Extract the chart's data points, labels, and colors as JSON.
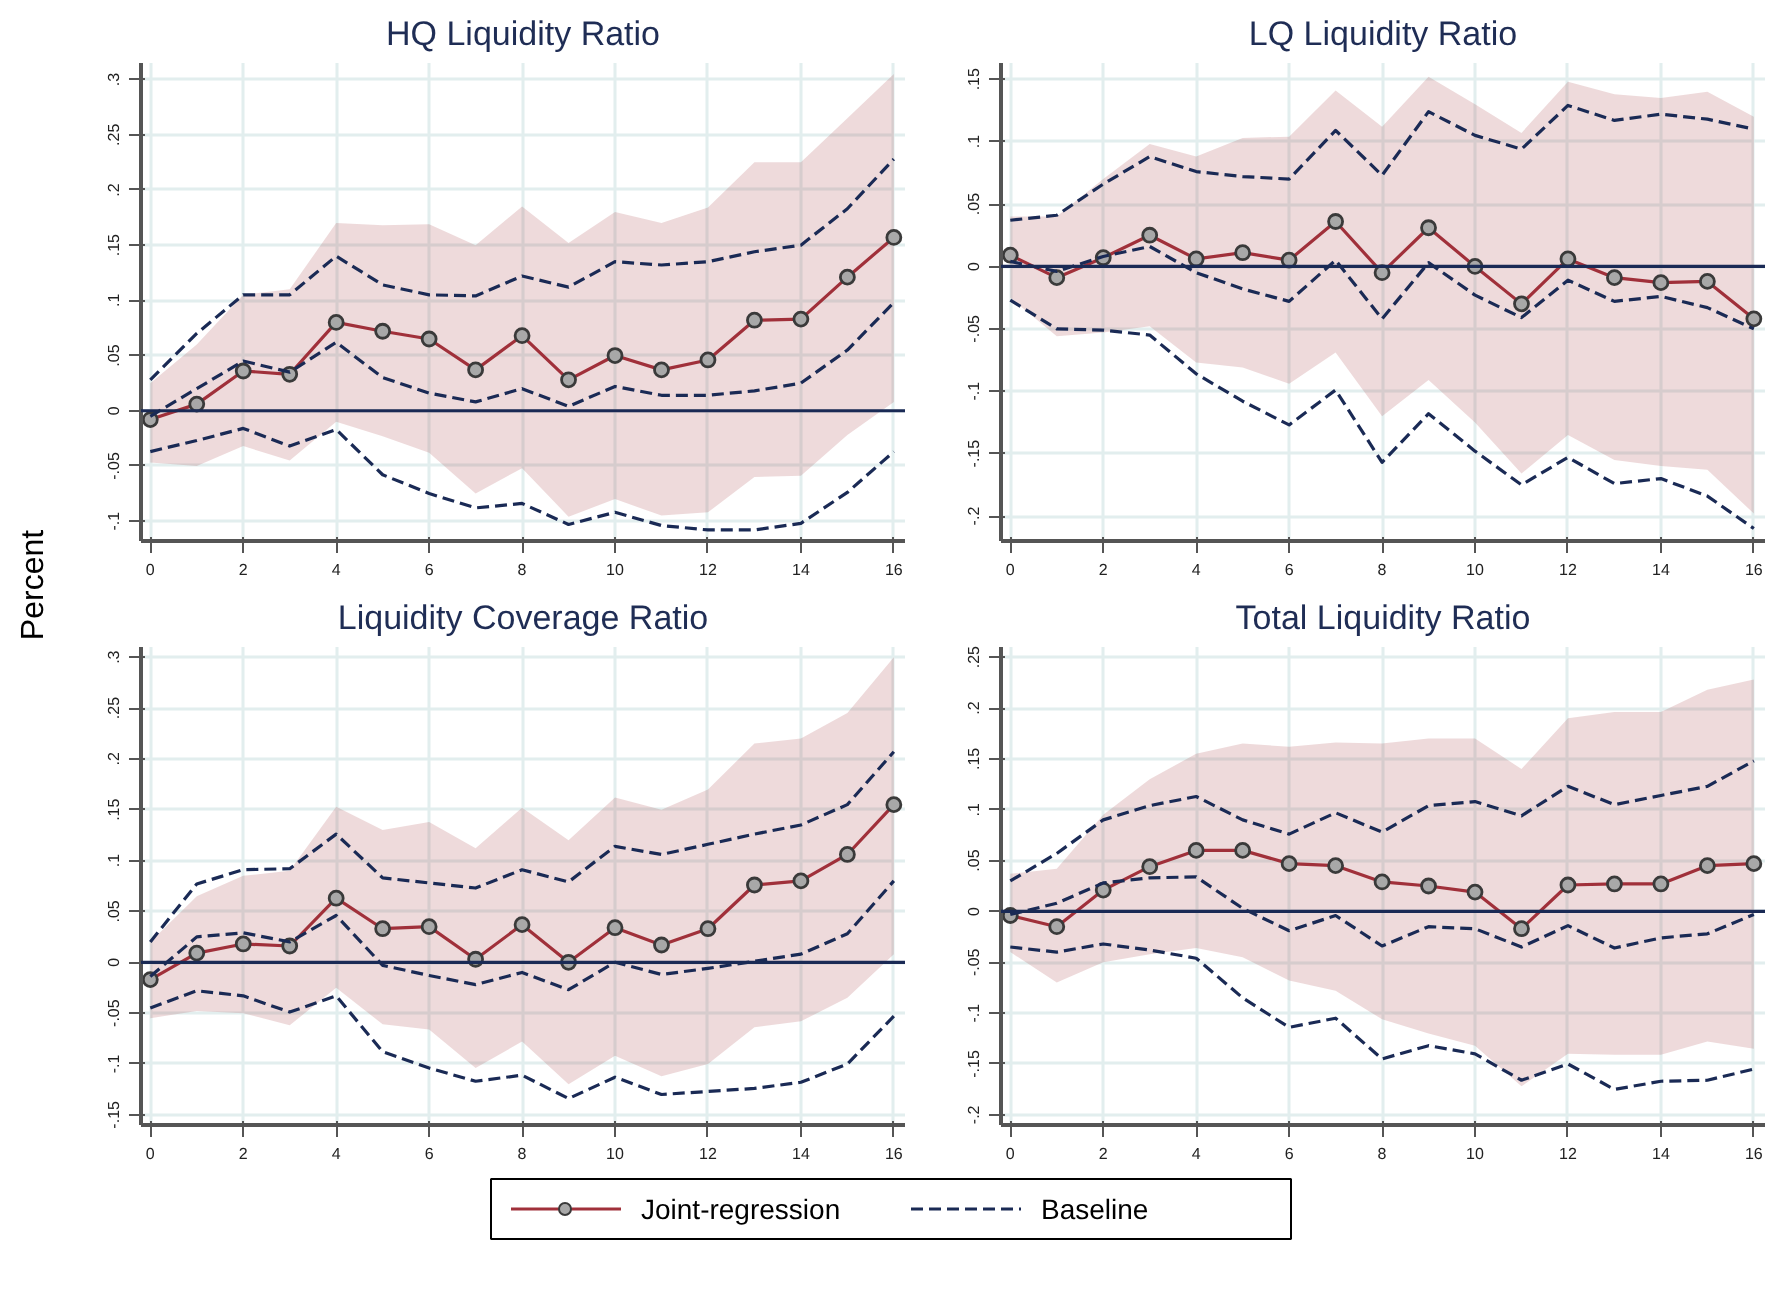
{
  "chart_data": [
    {
      "type": "line",
      "title": "HQ Liquidity Ratio",
      "ylabel": "Percent",
      "legend": "bottom",
      "grid": true,
      "x": [
        0,
        1,
        2,
        3,
        4,
        5,
        6,
        7,
        8,
        9,
        10,
        11,
        12,
        13,
        14,
        15,
        16
      ],
      "xlim": [
        -0.2,
        16.24
      ],
      "xticks": [
        0,
        2,
        4,
        6,
        8,
        10,
        12,
        14,
        16
      ],
      "ylim": [
        -0.118,
        0.315
      ],
      "yticks": [
        {
          "value": -0.1,
          "label": "-.1"
        },
        {
          "value": -0.05,
          "label": "-.05"
        },
        0,
        {
          "value": 0.05,
          "label": ".05"
        },
        {
          "value": 0.1,
          "label": ".1"
        },
        {
          "value": 0.15,
          "label": ".15"
        },
        {
          "value": 0.2,
          "label": ".2"
        },
        {
          "value": 0.25,
          "label": ".25"
        },
        {
          "value": 0.3,
          "label": ".3"
        }
      ],
      "ref_lines": [
        {
          "axis": "y",
          "value": 0,
          "color": "#1a2a55"
        }
      ],
      "series": [
        {
          "name": "Joint-regression",
          "color": "#a0303a",
          "marker": "circle",
          "line_style": "solid",
          "values": [
            -0.008,
            0.006,
            0.036,
            0.033,
            0.08,
            0.072,
            0.065,
            0.037,
            0.068,
            0.028,
            0.05,
            0.037,
            0.046,
            0.082,
            0.083,
            0.121,
            0.157
          ],
          "lower": [
            -0.047,
            -0.05,
            -0.032,
            -0.045,
            -0.01,
            -0.023,
            -0.038,
            -0.075,
            -0.052,
            -0.096,
            -0.08,
            -0.095,
            -0.092,
            -0.06,
            -0.059,
            -0.022,
            0.008
          ],
          "upper": [
            0.025,
            0.06,
            0.105,
            0.11,
            0.17,
            0.168,
            0.169,
            0.15,
            0.185,
            0.152,
            0.18,
            0.17,
            0.184,
            0.225,
            0.225,
            0.265,
            0.305
          ]
        },
        {
          "name": "Baseline",
          "color": "#1a2a55",
          "marker": "none",
          "line_style": "dashed",
          "values": [
            -0.005,
            0.02,
            0.045,
            0.035,
            0.062,
            0.03,
            0.016,
            0.008,
            0.02,
            0.004,
            0.022,
            0.014,
            0.014,
            0.018,
            0.025,
            0.055,
            0.098
          ]
        },
        {
          "color": "#1a2a55",
          "marker": "none",
          "line_style": "dashed",
          "values": [
            0.028,
            0.07,
            0.105,
            0.105,
            0.14,
            0.114,
            0.105,
            0.104,
            0.122,
            0.112,
            0.135,
            0.132,
            0.135,
            0.144,
            0.15,
            0.183,
            0.228
          ]
        },
        {
          "color": "#1a2a55",
          "marker": "none",
          "line_style": "dashed",
          "values": [
            -0.037,
            -0.027,
            -0.016,
            -0.032,
            -0.017,
            -0.058,
            -0.075,
            -0.088,
            -0.084,
            -0.103,
            -0.092,
            -0.104,
            -0.108,
            -0.108,
            -0.102,
            -0.074,
            -0.037
          ]
        }
      ]
    },
    {
      "type": "line",
      "title": "LQ Liquidity Ratio",
      "grid": true,
      "x": [
        0,
        1,
        2,
        3,
        4,
        5,
        6,
        7,
        8,
        9,
        10,
        11,
        12,
        13,
        14,
        15,
        16
      ],
      "xlim": [
        -0.2,
        16.24
      ],
      "xticks": [
        0,
        2,
        4,
        6,
        8,
        10,
        12,
        14,
        16
      ],
      "ylim": [
        -0.22,
        0.163
      ],
      "yticks": [
        {
          "value": -0.2,
          "label": "-.2"
        },
        {
          "value": -0.15,
          "label": "-.15"
        },
        {
          "value": -0.1,
          "label": "-.1"
        },
        {
          "value": -0.05,
          "label": "-.05"
        },
        0,
        {
          "value": 0.05,
          "label": ".05"
        },
        {
          "value": 0.1,
          "label": ".1"
        },
        {
          "value": 0.15,
          "label": ".15"
        }
      ],
      "ref_lines": [
        {
          "axis": "y",
          "value": 0,
          "color": "#1a2a55"
        }
      ],
      "series": [
        {
          "color": "#a0303a",
          "marker": "circle",
          "line_style": "solid",
          "values": [
            0.009,
            -0.009,
            0.007,
            0.025,
            0.006,
            0.011,
            0.005,
            0.036,
            -0.005,
            0.031,
            0.0,
            -0.03,
            0.006,
            -0.009,
            -0.013,
            -0.012,
            -0.042
          ],
          "lower": [
            -0.025,
            -0.056,
            -0.053,
            -0.048,
            -0.077,
            -0.081,
            -0.094,
            -0.069,
            -0.12,
            -0.091,
            -0.125,
            -0.166,
            -0.135,
            -0.155,
            -0.16,
            -0.163,
            -0.198
          ],
          "upper": [
            0.04,
            0.04,
            0.07,
            0.098,
            0.088,
            0.103,
            0.104,
            0.141,
            0.112,
            0.152,
            0.13,
            0.107,
            0.148,
            0.138,
            0.135,
            0.14,
            0.12
          ]
        },
        {
          "color": "#1a2a55",
          "marker": "none",
          "line_style": "dashed",
          "values": [
            0.004,
            -0.004,
            0.008,
            0.016,
            -0.005,
            -0.018,
            -0.028,
            0.005,
            -0.042,
            0.003,
            -0.023,
            -0.041,
            -0.011,
            -0.028,
            -0.024,
            -0.033,
            -0.05
          ]
        },
        {
          "color": "#1a2a55",
          "marker": "none",
          "line_style": "dashed",
          "values": [
            0.037,
            0.041,
            0.066,
            0.088,
            0.076,
            0.072,
            0.07,
            0.109,
            0.073,
            0.124,
            0.105,
            0.094,
            0.129,
            0.117,
            0.122,
            0.118,
            0.11
          ]
        },
        {
          "color": "#1a2a55",
          "marker": "none",
          "line_style": "dashed",
          "values": [
            -0.027,
            -0.05,
            -0.051,
            -0.055,
            -0.086,
            -0.108,
            -0.127,
            -0.099,
            -0.157,
            -0.118,
            -0.148,
            -0.175,
            -0.153,
            -0.174,
            -0.17,
            -0.184,
            -0.21
          ]
        }
      ]
    },
    {
      "type": "line",
      "title": "Liquidity Coverage Ratio",
      "grid": true,
      "x": [
        0,
        1,
        2,
        3,
        4,
        5,
        6,
        7,
        8,
        9,
        10,
        11,
        12,
        13,
        14,
        15,
        16
      ],
      "xlim": [
        -0.2,
        16.24
      ],
      "xticks": [
        0,
        2,
        4,
        6,
        8,
        10,
        12,
        14,
        16
      ],
      "ylim": [
        -0.16,
        0.31
      ],
      "yticks": [
        {
          "value": -0.15,
          "label": "-.15"
        },
        {
          "value": -0.1,
          "label": "-.1"
        },
        {
          "value": -0.05,
          "label": "-.05"
        },
        0,
        {
          "value": 0.05,
          "label": ".05"
        },
        {
          "value": 0.1,
          "label": ".1"
        },
        {
          "value": 0.15,
          "label": ".15"
        },
        {
          "value": 0.2,
          "label": ".2"
        },
        {
          "value": 0.25,
          "label": ".25"
        },
        {
          "value": 0.3,
          "label": ".3"
        }
      ],
      "ref_lines": [
        {
          "axis": "y",
          "value": 0,
          "color": "#1a2a55"
        }
      ],
      "series": [
        {
          "color": "#a0303a",
          "marker": "circle",
          "line_style": "solid",
          "values": [
            -0.017,
            0.009,
            0.018,
            0.016,
            0.063,
            0.033,
            0.035,
            0.003,
            0.037,
            0.0,
            0.034,
            0.017,
            0.033,
            0.076,
            0.08,
            0.106,
            0.155
          ],
          "lower": [
            -0.055,
            -0.048,
            -0.05,
            -0.062,
            -0.025,
            -0.061,
            -0.066,
            -0.104,
            -0.078,
            -0.12,
            -0.092,
            -0.112,
            -0.1,
            -0.064,
            -0.058,
            -0.035,
            0.008
          ],
          "upper": [
            0.02,
            0.065,
            0.085,
            0.09,
            0.153,
            0.13,
            0.138,
            0.112,
            0.152,
            0.12,
            0.162,
            0.15,
            0.17,
            0.215,
            0.22,
            0.245,
            0.3
          ]
        },
        {
          "color": "#1a2a55",
          "marker": "none",
          "line_style": "dashed",
          "values": [
            -0.014,
            0.025,
            0.029,
            0.02,
            0.046,
            -0.003,
            -0.013,
            -0.022,
            -0.01,
            -0.027,
            0.0,
            -0.012,
            -0.006,
            0.001,
            0.008,
            0.028,
            0.08
          ]
        },
        {
          "color": "#1a2a55",
          "marker": "none",
          "line_style": "dashed",
          "values": [
            0.02,
            0.077,
            0.091,
            0.092,
            0.126,
            0.083,
            0.078,
            0.073,
            0.091,
            0.079,
            0.114,
            0.106,
            0.116,
            0.126,
            0.135,
            0.155,
            0.207
          ]
        },
        {
          "color": "#1a2a55",
          "marker": "none",
          "line_style": "dashed",
          "values": [
            -0.045,
            -0.028,
            -0.033,
            -0.049,
            -0.033,
            -0.088,
            -0.104,
            -0.117,
            -0.111,
            -0.134,
            -0.113,
            -0.13,
            -0.127,
            -0.124,
            -0.118,
            -0.1,
            -0.053
          ]
        }
      ]
    },
    {
      "type": "line",
      "title": "Total Liquidity Ratio",
      "grid": true,
      "x": [
        0,
        1,
        2,
        3,
        4,
        5,
        6,
        7,
        8,
        9,
        10,
        11,
        12,
        13,
        14,
        15,
        16
      ],
      "xlim": [
        -0.2,
        16.24
      ],
      "xticks": [
        0,
        2,
        4,
        6,
        8,
        10,
        12,
        14,
        16
      ],
      "ylim": [
        -0.21,
        0.26
      ],
      "yticks": [
        {
          "value": -0.2,
          "label": "-.2"
        },
        {
          "value": -0.15,
          "label": "-.15"
        },
        {
          "value": -0.1,
          "label": "-.1"
        },
        {
          "value": -0.05,
          "label": "-.05"
        },
        0,
        {
          "value": 0.05,
          "label": ".05"
        },
        {
          "value": 0.1,
          "label": ".1"
        },
        {
          "value": 0.15,
          "label": ".15"
        },
        {
          "value": 0.2,
          "label": ".2"
        },
        {
          "value": 0.25,
          "label": ".25"
        }
      ],
      "ref_lines": [
        {
          "axis": "y",
          "value": 0,
          "color": "#1a2a55"
        }
      ],
      "series": [
        {
          "color": "#a0303a",
          "marker": "circle",
          "line_style": "solid",
          "values": [
            -0.004,
            -0.015,
            0.021,
            0.044,
            0.06,
            0.06,
            0.047,
            0.045,
            0.029,
            0.025,
            0.019,
            -0.017,
            0.026,
            0.027,
            0.027,
            0.045,
            0.047
          ],
          "lower": [
            -0.04,
            -0.07,
            -0.05,
            -0.042,
            -0.036,
            -0.045,
            -0.068,
            -0.078,
            -0.106,
            -0.12,
            -0.132,
            -0.172,
            -0.14,
            -0.141,
            -0.141,
            -0.128,
            -0.135
          ],
          "upper": [
            0.037,
            0.042,
            0.095,
            0.13,
            0.155,
            0.165,
            0.162,
            0.166,
            0.165,
            0.17,
            0.17,
            0.14,
            0.19,
            0.196,
            0.196,
            0.218,
            0.228
          ]
        },
        {
          "color": "#1a2a55",
          "marker": "none",
          "line_style": "dashed",
          "values": [
            -0.003,
            0.008,
            0.028,
            0.033,
            0.034,
            0.003,
            -0.019,
            -0.004,
            -0.034,
            -0.015,
            -0.017,
            -0.035,
            -0.014,
            -0.036,
            -0.026,
            -0.022,
            -0.003
          ]
        },
        {
          "color": "#1a2a55",
          "marker": "none",
          "line_style": "dashed",
          "values": [
            0.03,
            0.057,
            0.09,
            0.104,
            0.113,
            0.09,
            0.076,
            0.097,
            0.078,
            0.104,
            0.108,
            0.094,
            0.123,
            0.105,
            0.114,
            0.123,
            0.148
          ]
        },
        {
          "color": "#1a2a55",
          "marker": "none",
          "line_style": "dashed",
          "values": [
            -0.035,
            -0.04,
            -0.032,
            -0.038,
            -0.046,
            -0.085,
            -0.114,
            -0.105,
            -0.145,
            -0.132,
            -0.14,
            -0.166,
            -0.15,
            -0.175,
            -0.167,
            -0.166,
            -0.155
          ]
        }
      ]
    }
  ]
}
